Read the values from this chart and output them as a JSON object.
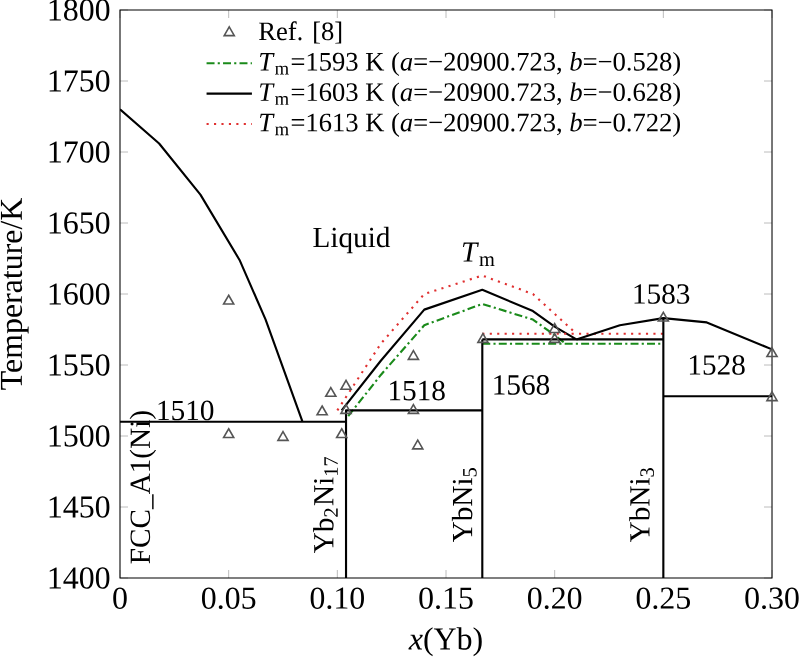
{
  "chart_data": {
    "type": "line",
    "xlabel": "*x*(Yb)",
    "ylabel": "Temperature/K",
    "xlim": [
      0,
      0.3
    ],
    "ylim": [
      1400,
      1800
    ],
    "xticks": [
      0,
      0.05,
      {
        "value": 0.1,
        "label": "0.10"
      },
      0.15,
      {
        "value": 0.2,
        "label": "0.20"
      },
      0.25,
      {
        "value": 0.3,
        "label": "0.30"
      }
    ],
    "yticks": [
      1400,
      1450,
      1500,
      1550,
      1600,
      1650,
      1700,
      1750,
      1800
    ],
    "legend": "top",
    "series": [
      {
        "name": "Ref. [8]",
        "type": "scatter",
        "marker": "triangle",
        "color": "#555555",
        "x": [
          0.05,
          0.05,
          0.075,
          0.102,
          0.093,
          0.097,
          0.104,
          0.104,
          0.135,
          0.135,
          0.137,
          0.167,
          0.2,
          0.2,
          0.25,
          0.3,
          0.3
        ],
        "values": [
          1595,
          1501,
          1499,
          1501,
          1517,
          1530,
          1535,
          1518,
          1556,
          1518,
          1493,
          1568,
          1568,
          1575,
          1583,
          1558,
          1527
        ]
      },
      {
        "name": "*T*$_{m}$=1593 K (*a*=−20900.723, *b*=−0.528)",
        "color": "#1a8a1a",
        "line_style": "dashed",
        "x": [
          0.105,
          0.12,
          0.14,
          0.1667,
          0.19,
          0.2,
          0.205,
          null,
          0.1667,
          0.25
        ],
        "values": [
          1514,
          1543,
          1578,
          1593,
          1582,
          1571,
          1565,
          null,
          1565,
          1565
        ]
      },
      {
        "name": "*T*$_{m}$=1603 K (*a*=−20900.723, *b*=−0.628)",
        "color": "#000000",
        "line_style": "solid",
        "x": [
          0.102,
          0.12,
          0.14,
          0.1667,
          0.19,
          0.2,
          0.21,
          null,
          0.1667,
          0.25
        ],
        "values": [
          1518,
          1553,
          1589,
          1603,
          1588,
          1577,
          1568,
          null,
          1568,
          1568
        ]
      },
      {
        "name": "*T*$_{m}$=1613 K (*a*=−20900.723, *b*=−0.722)",
        "color": "#e03030",
        "line_style": "dotted",
        "x": [
          0.1,
          0.12,
          0.14,
          0.1667,
          0.19,
          0.2,
          0.21,
          null,
          0.1667,
          0.25
        ],
        "values": [
          1518,
          1565,
          1600,
          1613,
          1600,
          1586,
          1572,
          null,
          1572,
          1572
        ]
      },
      {
        "color": "#000000",
        "line_style": "solid",
        "x": [
          0,
          0.018,
          0.037,
          0.055,
          0.067,
          0.084,
          null,
          0,
          0.104,
          null,
          0.104,
          0.104,
          0.1667,
          null,
          0.1667,
          0.1667,
          null,
          0.25,
          0.25,
          null,
          0.25,
          0.3,
          null,
          0.21,
          0.23,
          0.25,
          0.27,
          0.3
        ],
        "values": [
          1730,
          1706,
          1670,
          1624,
          1582,
          1510,
          null,
          1510,
          1510,
          null,
          1400,
          1518,
          1518,
          null,
          1400,
          1568,
          null,
          1400,
          1583,
          null,
          1528,
          1528,
          null,
          1568,
          1578,
          1583,
          1580,
          1561
        ]
      }
    ],
    "annotations": [
      "1510",
      "Liquid",
      "*T*$_{m}$",
      "1518",
      "1568",
      "1583",
      "1528",
      "FCC_A1(Ni)",
      "Yb$_{2}$Ni$_{17}$",
      "YbNi$_{5}$",
      "YbNi$_{3}$"
    ]
  }
}
